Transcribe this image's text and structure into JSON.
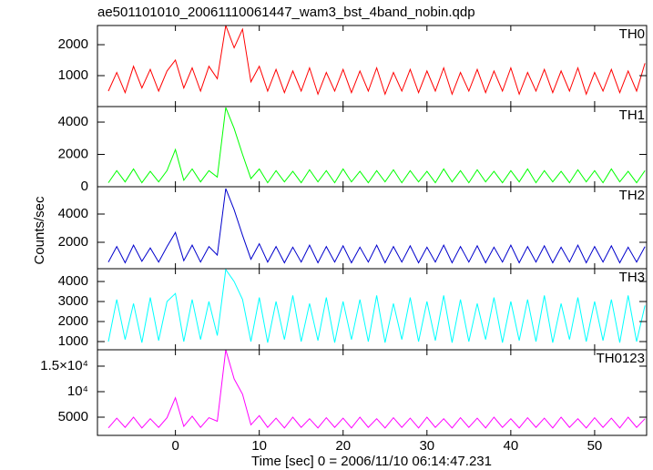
{
  "chart_data": {
    "type": "line",
    "title": "ae501101010_20061110061447_wam3_bst_4band_nobin.qdp",
    "xlabel": "Time [sec] 0 = 2006/11/10 06:14:47.231",
    "ylabel": "Counts/sec",
    "xlim": [
      -9.3,
      56.2
    ],
    "xticks": [
      0,
      10,
      20,
      30,
      40,
      50
    ],
    "x": [
      -8,
      -7,
      -6,
      -5,
      -4,
      -3,
      -2,
      -1,
      0,
      1,
      2,
      3,
      4,
      5,
      6,
      7,
      8,
      9,
      10,
      11,
      12,
      13,
      14,
      15,
      16,
      17,
      18,
      19,
      20,
      21,
      22,
      23,
      24,
      25,
      26,
      27,
      28,
      29,
      30,
      31,
      32,
      33,
      34,
      35,
      36,
      37,
      38,
      39,
      40,
      41,
      42,
      43,
      44,
      45,
      46,
      47,
      48,
      49,
      50,
      51,
      52,
      53,
      54,
      55,
      56
    ],
    "series": [
      {
        "name": "TH0",
        "color": "#ff0000",
        "ylim": [
          0,
          2620
        ],
        "yticks": [
          1000,
          2000
        ],
        "values": [
          500,
          1100,
          450,
          1300,
          600,
          1200,
          500,
          1150,
          1500,
          600,
          1250,
          500,
          1300,
          900,
          2620,
          1900,
          2500,
          800,
          1300,
          500,
          1200,
          450,
          1150,
          500,
          1250,
          400,
          1100,
          500,
          1200,
          450,
          1150,
          500,
          1250,
          400,
          1100,
          500,
          1200,
          450,
          1150,
          500,
          1250,
          400,
          1100,
          500,
          1200,
          450,
          1150,
          500,
          1250,
          400,
          1100,
          500,
          1200,
          450,
          1150,
          500,
          1250,
          400,
          1100,
          500,
          1200,
          450,
          1150,
          500,
          1400
        ]
      },
      {
        "name": "TH1",
        "color": "#00ff00",
        "ylim": [
          0,
          4960
        ],
        "yticks": [
          0,
          2000,
          4000
        ],
        "values": [
          250,
          1000,
          300,
          1100,
          250,
          950,
          300,
          1000,
          2300,
          400,
          1100,
          300,
          1000,
          600,
          4900,
          3600,
          2000,
          500,
          1100,
          250,
          1000,
          300,
          950,
          250,
          1050,
          300,
          1000,
          250,
          1100,
          300,
          950,
          250,
          1000,
          300,
          1050,
          250,
          1000,
          300,
          950,
          250,
          1100,
          300,
          1000,
          250,
          1050,
          300,
          950,
          250,
          1000,
          300,
          1100,
          250,
          1000,
          300,
          950,
          250,
          1050,
          300,
          1000,
          250,
          1100,
          300,
          950,
          250,
          1000
        ]
      },
      {
        "name": "TH2",
        "color": "#0000cc",
        "ylim": [
          130,
          5935
        ],
        "yticks": [
          2000,
          4000
        ],
        "values": [
          600,
          1700,
          550,
          1800,
          650,
          1600,
          600,
          1700,
          2700,
          700,
          1800,
          600,
          1700,
          1100,
          5800,
          4300,
          2500,
          800,
          1900,
          600,
          1700,
          550,
          1650,
          600,
          1800,
          550,
          1700,
          600,
          1750,
          550,
          1650,
          600,
          1800,
          550,
          1700,
          600,
          1750,
          550,
          1650,
          600,
          1800,
          550,
          1700,
          600,
          1750,
          550,
          1650,
          600,
          1800,
          550,
          1700,
          600,
          1750,
          550,
          1650,
          600,
          1800,
          550,
          1700,
          600,
          1750,
          550,
          1650,
          600,
          1700
        ]
      },
      {
        "name": "TH3",
        "color": "#00ffff",
        "ylim": [
          590,
          4640
        ],
        "yticks": [
          1000,
          2000,
          3000,
          4000
        ],
        "values": [
          1000,
          3100,
          1100,
          2900,
          950,
          3200,
          1050,
          3000,
          3400,
          1000,
          3100,
          1100,
          3000,
          1300,
          4600,
          4000,
          3100,
          1000,
          3200,
          950,
          3000,
          1100,
          3300,
          1000,
          2900,
          1050,
          3200,
          950,
          3000,
          1100,
          3100,
          1000,
          3300,
          950,
          2900,
          1100,
          3200,
          1000,
          3000,
          1050,
          3300,
          950,
          3100,
          1000,
          2900,
          1100,
          3200,
          950,
          3000,
          1050,
          3100,
          1000,
          3300,
          950,
          2900,
          1100,
          3200,
          1000,
          3000,
          1050,
          3100,
          950,
          3300,
          1000,
          2800
        ]
      },
      {
        "name": "TH0123",
        "color": "#ff00ff",
        "ylim": [
          1430,
          18210
        ],
        "yticks": [
          5000,
          {
            "value": 10000,
            "label": "10⁴"
          },
          {
            "value": 15000,
            "label": "1.5×10⁴"
          }
        ],
        "values": [
          2900,
          4800,
          3000,
          5000,
          2900,
          4700,
          3000,
          4900,
          8800,
          3200,
          5200,
          3000,
          4900,
          4200,
          18200,
          12500,
          9500,
          3500,
          5300,
          3000,
          4800,
          2900,
          5000,
          3000,
          4700,
          2900,
          4900,
          3000,
          4800,
          2900,
          5000,
          3000,
          4700,
          2900,
          4900,
          3000,
          4800,
          2900,
          5000,
          3000,
          4700,
          2900,
          4900,
          3000,
          4800,
          2900,
          5000,
          3000,
          4700,
          2900,
          4900,
          3000,
          4800,
          2900,
          5000,
          3000,
          4700,
          2900,
          4900,
          3000,
          4800,
          2900,
          5000,
          3000,
          4700
        ]
      }
    ]
  }
}
